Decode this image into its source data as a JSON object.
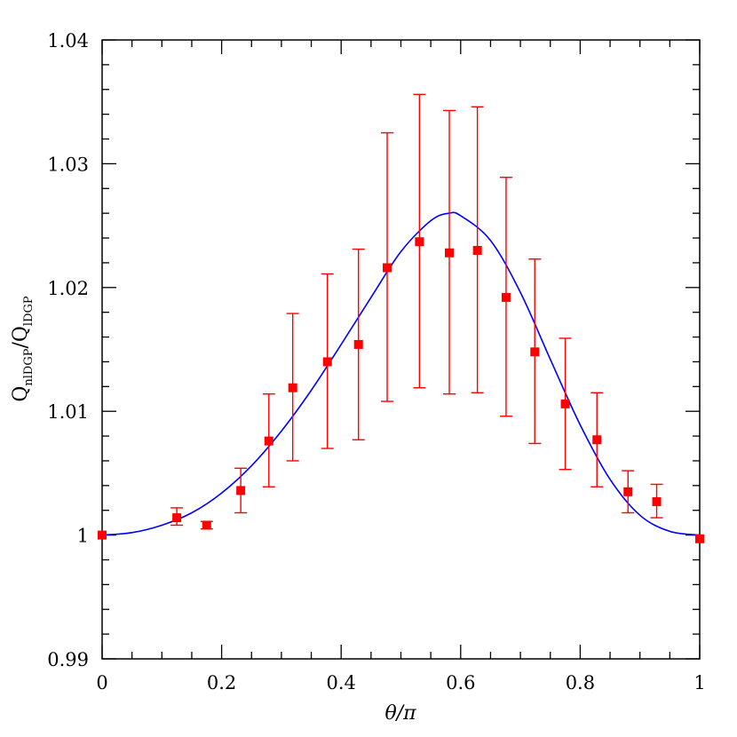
{
  "chart_data": {
    "type": "scatter",
    "xlabel": "θ/π",
    "ylabel_main_1": "Q",
    "ylabel_sub_1": "nlDGP",
    "ylabel_sep": "/",
    "ylabel_main_2": "Q",
    "ylabel_sub_2": "lDGP",
    "xlim": [
      0,
      1
    ],
    "ylim": [
      0.99,
      1.04
    ],
    "x_ticks": [
      0,
      0.2,
      0.4,
      0.6,
      0.8,
      1
    ],
    "x_tick_labels": [
      "0",
      "0.2",
      "0.4",
      "0.6",
      "0.8",
      "1"
    ],
    "y_ticks": [
      0.99,
      1.0,
      1.01,
      1.02,
      1.03,
      1.04
    ],
    "y_tick_labels": [
      "0.99",
      "1",
      "1.01",
      "1.02",
      "1.03",
      "1.04"
    ],
    "grid": false,
    "colors": {
      "points": "#ff0000",
      "curve": "#0000ff"
    },
    "series": [
      {
        "kind": "points_with_errorbars",
        "x": [
          0.0,
          0.125,
          0.175,
          0.232,
          0.279,
          0.319,
          0.377,
          0.429,
          0.477,
          0.531,
          0.581,
          0.628,
          0.676,
          0.724,
          0.775,
          0.828,
          0.88,
          0.928,
          1.0
        ],
        "y": [
          1.0,
          1.0014,
          1.0008,
          1.0036,
          1.0076,
          1.0119,
          1.014,
          1.0154,
          1.0216,
          1.0237,
          1.0228,
          1.023,
          1.0192,
          1.0148,
          1.0106,
          1.0077,
          1.0035,
          1.0027,
          0.9997
        ],
        "y_low": [
          1.0,
          1.0008,
          1.0005,
          1.0018,
          1.0039,
          1.006,
          1.007,
          1.0077,
          1.0108,
          1.0119,
          1.0114,
          1.0115,
          1.0096,
          1.0074,
          1.0053,
          1.0039,
          1.0018,
          1.0014,
          0.9997
        ],
        "y_high": [
          1.0,
          1.0022,
          1.0011,
          1.0054,
          1.0114,
          1.0179,
          1.0211,
          1.0231,
          1.0325,
          1.0356,
          1.0343,
          1.0346,
          1.0289,
          1.0223,
          1.0159,
          1.0115,
          1.0052,
          1.0041,
          0.9997
        ]
      },
      {
        "kind": "line",
        "x": [
          0.0,
          0.05,
          0.1,
          0.15,
          0.2,
          0.25,
          0.3,
          0.35,
          0.4,
          0.45,
          0.5,
          0.55,
          0.58,
          0.6,
          0.65,
          0.7,
          0.75,
          0.8,
          0.85,
          0.9,
          0.95,
          1.0
        ],
        "y": [
          1.0,
          1.0002,
          1.0008,
          1.0018,
          1.0034,
          1.0056,
          1.0084,
          1.0117,
          1.0154,
          1.0192,
          1.0229,
          1.0254,
          1.026,
          1.0258,
          1.0238,
          1.0196,
          1.0142,
          1.0089,
          1.0045,
          1.0016,
          1.0003,
          1.0
        ]
      }
    ]
  }
}
